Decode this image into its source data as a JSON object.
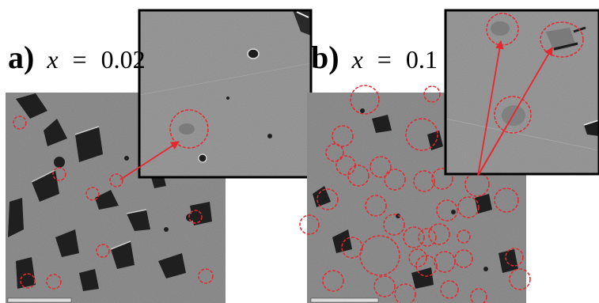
{
  "panels": [
    {
      "letter": "a)",
      "var": "x",
      "eq": " = ",
      "value": "0.02"
    },
    {
      "letter": "b)",
      "var": "x",
      "eq": " = ",
      "value": "0.1"
    }
  ],
  "colors": {
    "annotation": "#e8262d",
    "sem_base": "#8f8f8f",
    "inset_base": "#9a9a9a",
    "inset_border": "#000000",
    "background": "#ffffff"
  }
}
